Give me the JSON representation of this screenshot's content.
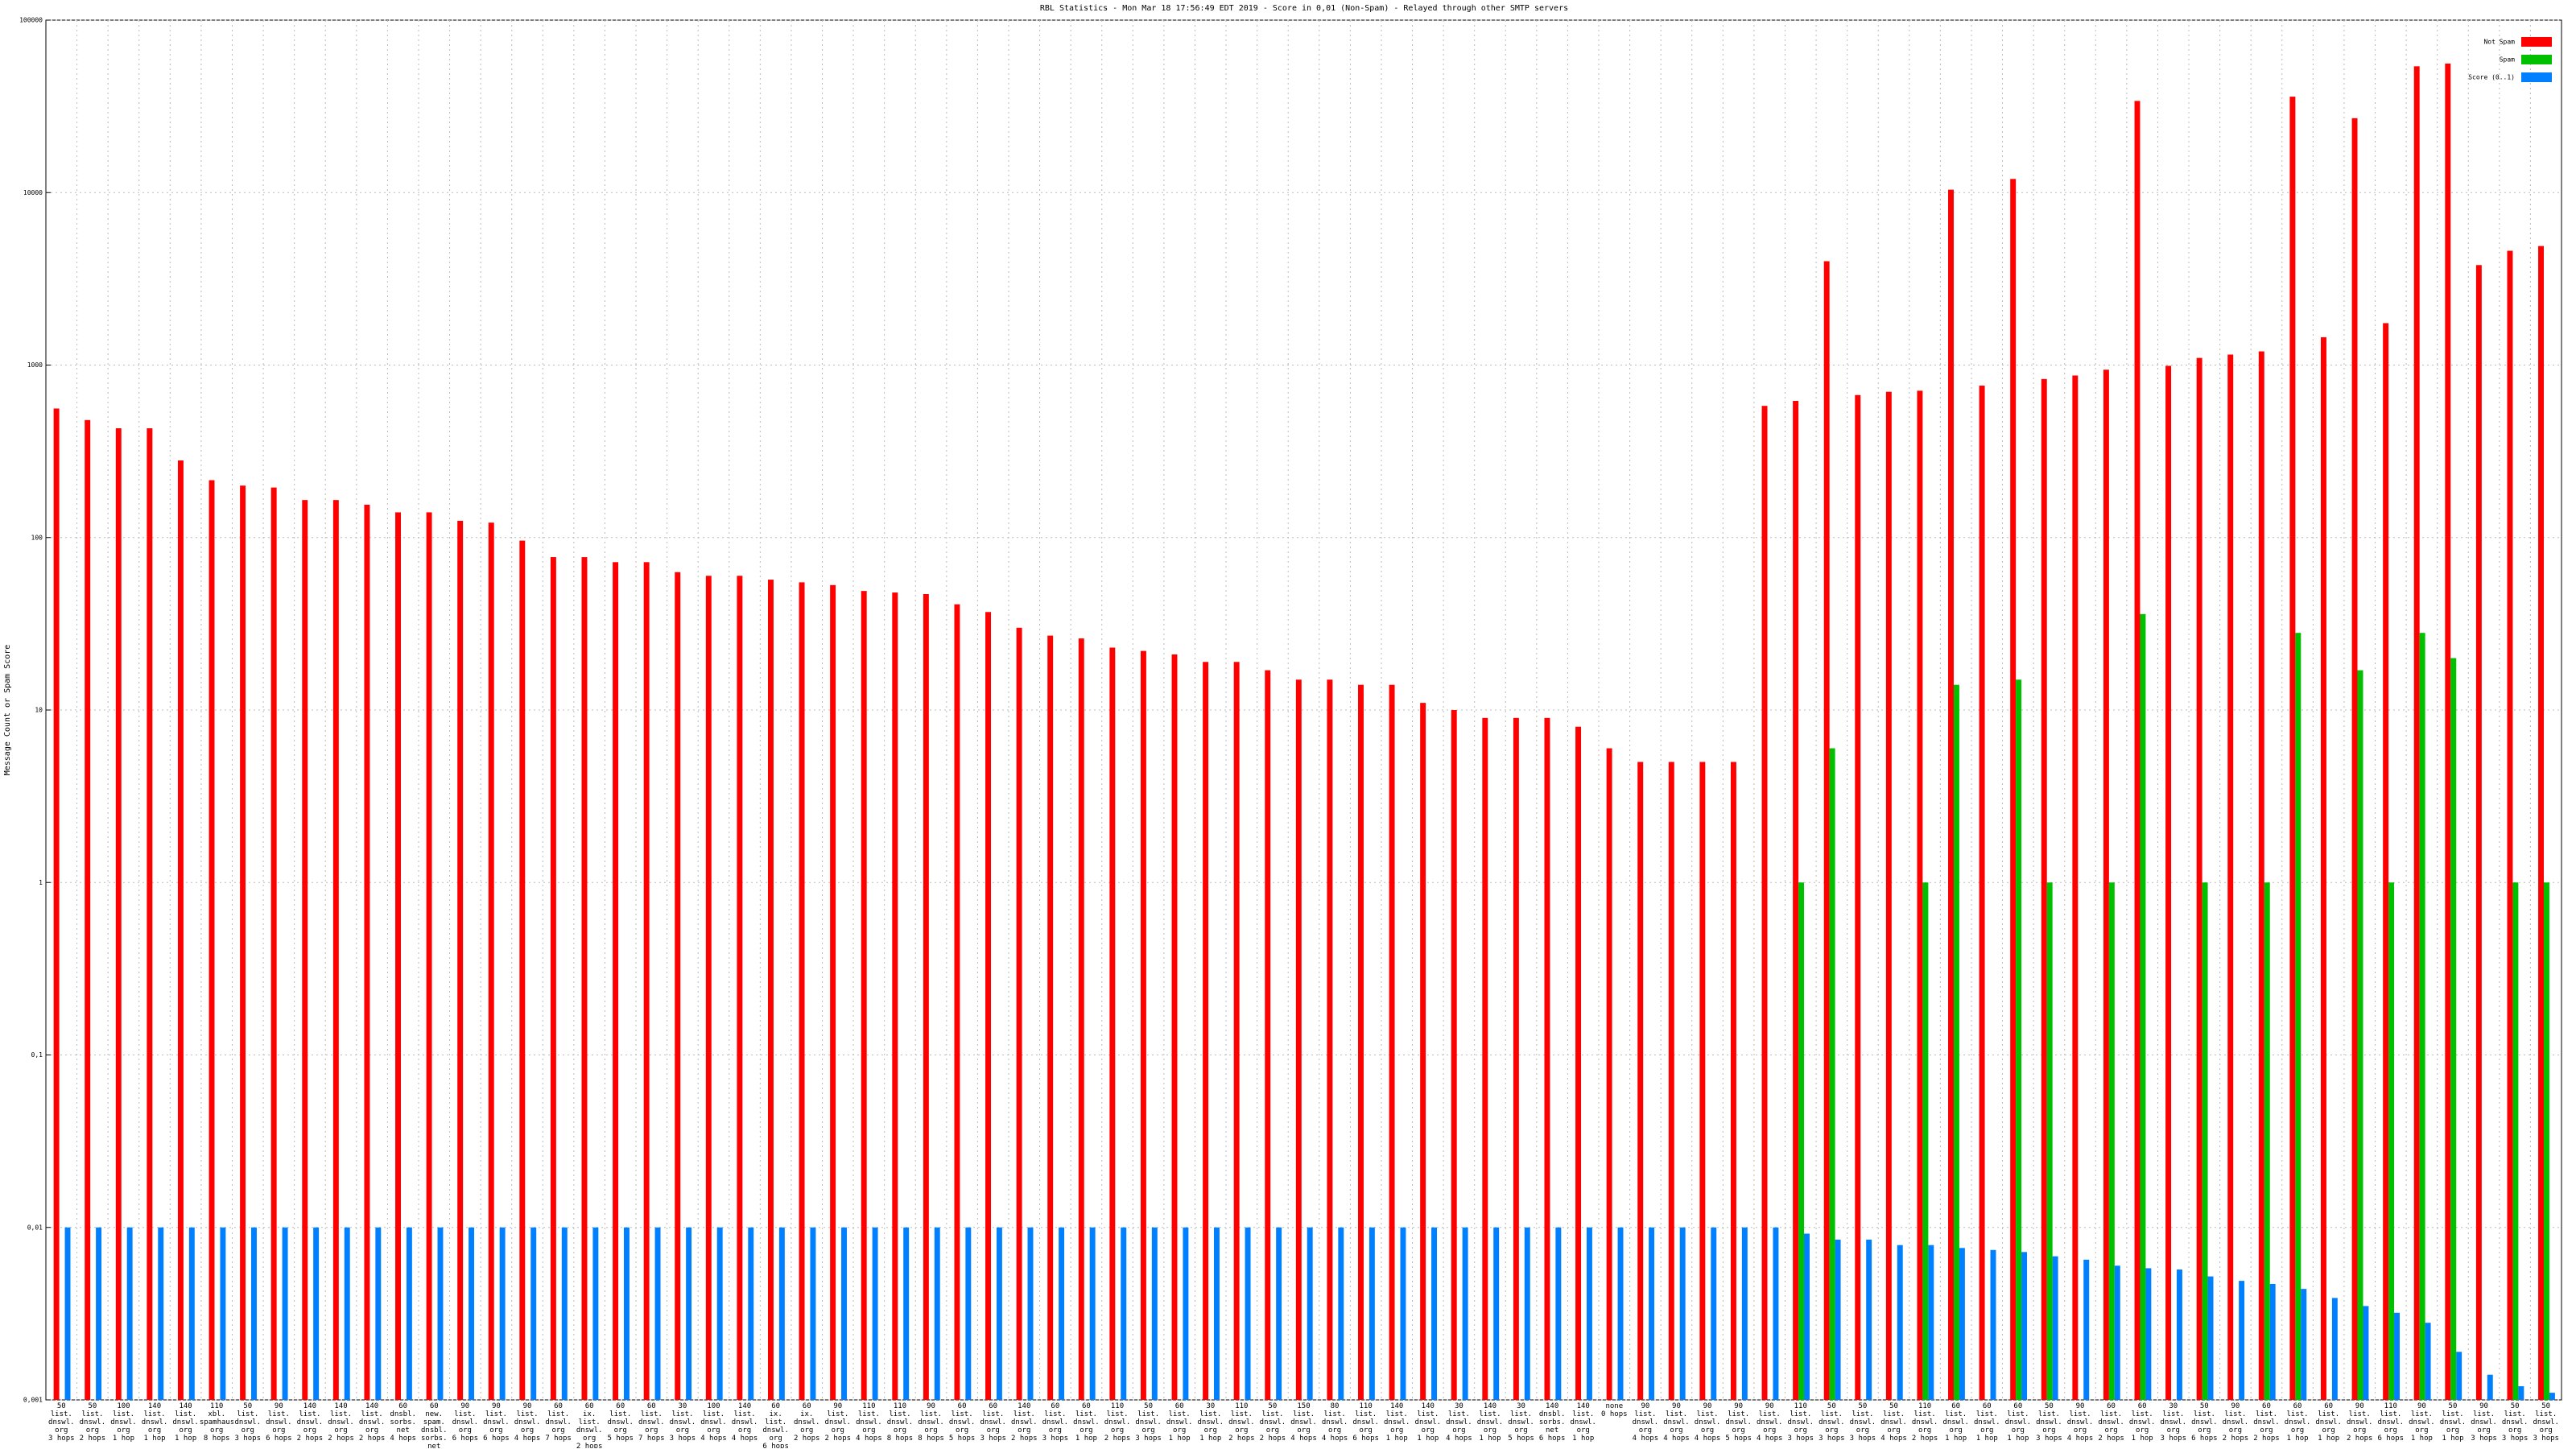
{
  "chart_data": {
    "type": "bar",
    "title": "RBL Statistics - Mon Mar 18 17:56:49 EDT 2019 - Score in 0,01 (Non-Spam) - Relayed through other SMTP servers",
    "y_label": "Message Count or Spam Score",
    "log_scale": true,
    "grid": true,
    "legend": "upper right",
    "ylim": [
      0.001,
      100000
    ],
    "yticks": [
      {
        "value": 0.001,
        "label": "0,001"
      },
      {
        "value": 0.01,
        "label": "0,01"
      },
      {
        "value": 0.1,
        "label": "0,1"
      },
      1,
      10,
      100,
      1000,
      10000,
      100000
    ],
    "categories": [
      "50\nlist.\ndnswl.\norg\n3 hops",
      "50\nlist.\ndnswl.\norg\n2 hops",
      "100\nlist.\ndnswl.\norg\n1 hop",
      "140\nlist.\ndnswl.\norg\n1 hop",
      "140\nlist.\ndnswl.\norg\n1 hop",
      "110\nxbl.\nspamhaus.\norg\n8 hops",
      "50\nlist.\ndnswl.\norg\n3 hops",
      "90\nlist.\ndnswl.\norg\n6 hops",
      "140\nlist.\ndnswl.\norg\n2 hops",
      "140\nlist.\ndnswl.\norg\n2 hops",
      "140\nlist.\ndnswl.\norg\n2 hops",
      "60\ndnsbl.\nsorbs.\nnet\n4 hops",
      "60\nnew.\nspam.\ndnsbl.\nsorbs.\nnet\n4 hops",
      "90\nlist.\ndnswl.\norg\n6 hops",
      "90\nlist.\ndnswl.\norg\n6 hops",
      "90\nlist.\ndnswl.\norg\n4 hops",
      "60\nlist.\ndnswl.\norg\n7 hops",
      "60\nix.\nlist.\ndnswl.\norg\n2 hops",
      "60\nlist.\ndnswl.\norg\n5 hops",
      "60\nlist.\ndnswl.\norg\n7 hops",
      "30\nlist.\ndnswl.\norg\n3 hops",
      "100\nlist.\ndnswl.\norg\n4 hops",
      "140\nlist.\ndnswl.\norg\n4 hops",
      "60\nix.\nlist.\ndnswl.\norg\n6 hops",
      "60\nix.\ndnswl.\norg\n2 hops",
      "90\nlist.\ndnswl.\norg\n2 hops",
      "110\nlist.\ndnswl.\norg\n4 hops",
      "110\nlist.\ndnswl.\norg\n8 hops",
      "90\nlist.\ndnswl.\norg\n8 hops",
      "60\nlist.\ndnswl.\norg\n5 hops",
      "60\nlist.\ndnswl.\norg\n3 hops",
      "140\nlist.\ndnswl.\norg\n2 hops",
      "60\nlist.\ndnswl.\norg\n3 hops",
      "60\nlist.\ndnswl.\norg\n1 hop",
      "110\nlist.\ndnswl.\norg\n2 hops",
      "50\nlist.\ndnswl.\norg\n3 hops",
      "60\nlist.\ndnswl.\norg\n1 hop",
      "30\nlist.\ndnswl.\norg\n1 hop",
      "110\nlist.\ndnswl.\norg\n2 hops",
      "50\nlist.\ndnswl.\norg\n2 hops",
      "150\nlist.\ndnswl.\norg\n4 hops",
      "80\nlist.\ndnswl.\norg\n4 hops",
      "110\nlist.\ndnswl.\norg\n6 hops",
      "140\nlist.\ndnswl.\norg\n1 hop",
      "140\nlist.\ndnswl.\norg\n1 hop",
      "30\nlist.\ndnswl.\norg\n4 hops",
      "140\nlist.\ndnswl.\norg\n1 hop",
      "30\nlist.\ndnswl.\norg\n5 hops",
      "140\ndnsbl.\nsorbs.\nnet\n6 hops",
      "140\nlist.\ndnswl.\norg\n1 hop",
      "none\n0 hops",
      "90\nlist.\ndnswl.\norg\n4 hops",
      "90\nlist.\ndnswl.\norg\n4 hops",
      "90\nlist.\ndnswl.\norg\n4 hops",
      "90\nlist.\ndnswl.\norg\n5 hops",
      "90\nlist.\ndnswl.\norg\n4 hops",
      "110\nlist.\ndnswl.\norg\n3 hops",
      "50\nlist.\ndnswl.\norg\n3 hops",
      "50\nlist.\ndnswl.\norg\n3 hops",
      "50\nlist.\ndnswl.\norg\n4 hops",
      "110\nlist.\ndnswl.\norg\n2 hops",
      "60\nlist.\ndnswl.\norg\n1 hop",
      "60\nlist.\ndnswl.\norg\n1 hop",
      "60\nlist.\ndnswl.\norg\n1 hop",
      "50\nlist.\ndnswl.\norg\n3 hops",
      "90\nlist.\ndnswl.\norg\n4 hops",
      "60\nlist.\ndnswl.\norg\n2 hops",
      "60\nlist.\ndnswl.\norg\n1 hop",
      "30\nlist.\ndnswl.\norg\n3 hops",
      "50\nlist.\ndnswl.\norg\n6 hops",
      "90\nlist.\ndnswl.\norg\n2 hops",
      "60\nlist.\ndnswl.\norg\n2 hops",
      "60\nlist.\ndnswl.\norg\n1 hop",
      "60\nlist.\ndnswl.\norg\n1 hop",
      "90\nlist.\ndnswl.\norg\n2 hops",
      "110\nlist.\ndnswl.\norg\n6 hops",
      "90\nlist.\ndnswl.\norg\n1 hop",
      "50\nlist.\ndnswl.\norg\n1 hop",
      "90\nlist.\ndnswl.\norg\n3 hops",
      "50\nlist.\ndnswl.\norg\n3 hops",
      "50\nlist.\ndnswl.\norg\n3 hops"
    ],
    "series": [
      {
        "name": "Not Spam",
        "color": "#ff0000",
        "values": [
          560,
          480,
          430,
          430,
          280,
          215,
          200,
          195,
          165,
          165,
          155,
          140,
          140,
          125,
          122,
          96,
          77,
          77,
          72,
          72,
          63,
          60,
          60,
          57,
          55,
          53,
          49,
          48,
          47,
          41,
          37,
          30,
          27,
          26,
          23,
          22,
          21,
          19,
          19,
          17,
          15,
          15,
          14,
          14,
          11,
          10,
          9,
          9,
          9,
          8,
          6,
          5,
          5,
          5,
          5,
          580,
          620,
          4000,
          670,
          700,
          710,
          10400,
          760,
          12000,
          830,
          870,
          940,
          34000,
          990,
          1100,
          1150,
          1200,
          36000,
          1450,
          27000,
          1750,
          54000,
          56000,
          3800,
          4600,
          4900
        ]
      },
      {
        "name": "Spam",
        "color": "#00c000",
        "values": [
          null,
          null,
          null,
          null,
          null,
          null,
          null,
          null,
          null,
          null,
          null,
          null,
          null,
          null,
          null,
          null,
          null,
          null,
          null,
          null,
          null,
          null,
          null,
          null,
          null,
          null,
          null,
          null,
          null,
          null,
          null,
          null,
          null,
          null,
          null,
          null,
          null,
          null,
          null,
          null,
          null,
          null,
          null,
          null,
          null,
          null,
          null,
          null,
          null,
          null,
          null,
          null,
          null,
          null,
          null,
          null,
          1,
          6,
          null,
          null,
          1,
          14,
          null,
          15,
          1,
          null,
          1,
          36,
          null,
          1,
          null,
          1,
          28,
          null,
          17,
          1,
          28,
          20,
          null,
          1,
          1
        ]
      },
      {
        "name": "Score (0..1)",
        "color": "#0080ff",
        "values": [
          0.01,
          0.01,
          0.01,
          0.01,
          0.01,
          0.01,
          0.01,
          0.01,
          0.01,
          0.01,
          0.01,
          0.01,
          0.01,
          0.01,
          0.01,
          0.01,
          0.01,
          0.01,
          0.01,
          0.01,
          0.01,
          0.01,
          0.01,
          0.01,
          0.01,
          0.01,
          0.01,
          0.01,
          0.01,
          0.01,
          0.01,
          0.01,
          0.01,
          0.01,
          0.01,
          0.01,
          0.01,
          0.01,
          0.01,
          0.01,
          0.01,
          0.01,
          0.01,
          0.01,
          0.01,
          0.01,
          0.01,
          0.01,
          0.01,
          0.01,
          0.01,
          0.01,
          0.01,
          0.01,
          0.01,
          0.01,
          0.0092,
          0.0085,
          0.0085,
          0.0079,
          0.0079,
          0.0076,
          0.0074,
          0.0072,
          0.0068,
          0.0065,
          0.006,
          0.0058,
          0.0057,
          0.0052,
          0.0049,
          0.0047,
          0.0044,
          0.0039,
          0.0035,
          0.0032,
          0.0028,
          0.0019,
          0.0014,
          0.0012,
          0.0011
        ]
      }
    ]
  }
}
